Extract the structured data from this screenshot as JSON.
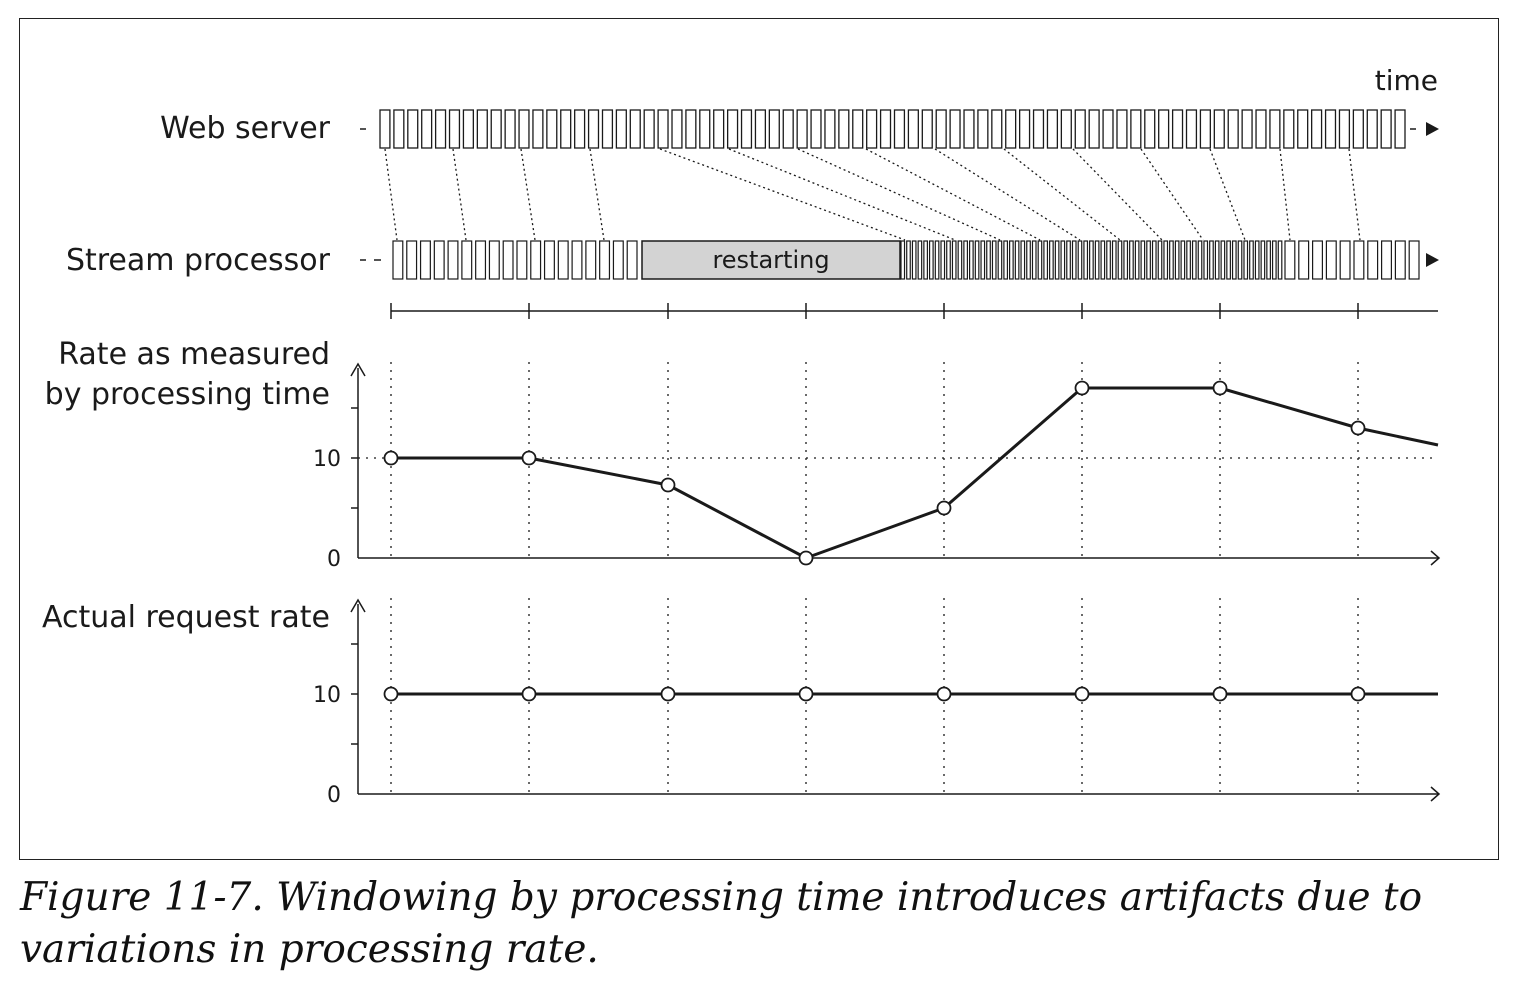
{
  "labels": {
    "time": "time",
    "web_server": "Web server",
    "stream_processor": "Stream processor",
    "restarting": "restarting",
    "rate_processing_line1": "Rate as measured",
    "rate_processing_line2": "by processing time",
    "actual_rate": "Actual request rate"
  },
  "caption": "Figure 11-7. Windowing by processing time introduces artifacts due to variations in processing rate.",
  "colors": {
    "ink": "#1a1a1a",
    "restart_fill": "#d3d3d3",
    "background": "#ffffff"
  },
  "chart_data": [
    {
      "type": "line",
      "ylabel": "Rate as measured by processing time",
      "y_ticks": [
        "0",
        "10"
      ],
      "window_points": [
        0,
        1,
        2,
        3,
        4,
        5,
        6,
        7
      ],
      "values": [
        10,
        10,
        7.3,
        0,
        5,
        17,
        17,
        13
      ],
      "trailing_value": 11.3,
      "reference_value": 10
    },
    {
      "type": "line",
      "ylabel": "Actual request rate",
      "y_ticks": [
        "0",
        "10"
      ],
      "window_points": [
        0,
        1,
        2,
        3,
        4,
        5,
        6,
        7
      ],
      "values": [
        10,
        10,
        10,
        10,
        10,
        10,
        10,
        10
      ]
    }
  ]
}
